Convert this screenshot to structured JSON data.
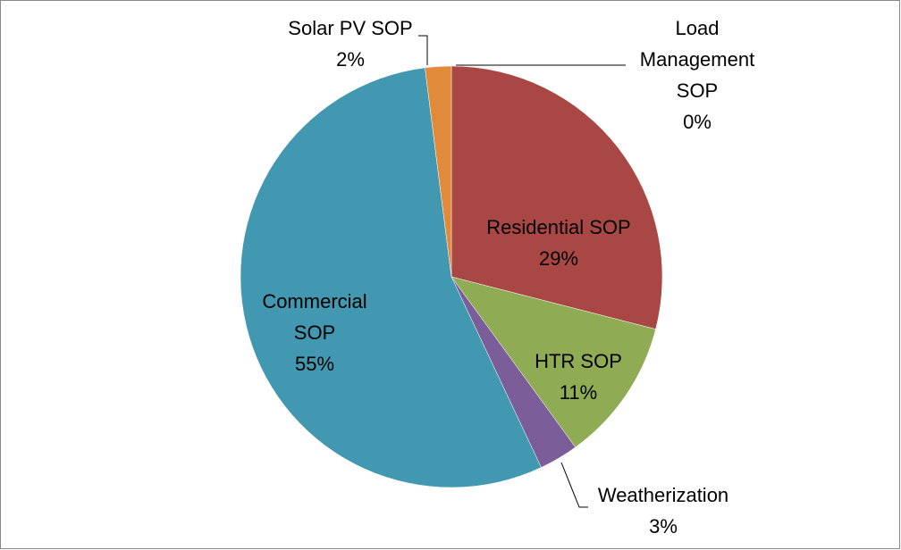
{
  "chart_data": {
    "type": "pie",
    "categories": [
      "Load Management SOP",
      "Residential SOP",
      "HTR SOP",
      "Weatherization",
      "Commercial SOP",
      "Solar PV SOP"
    ],
    "values": [
      0,
      29,
      11,
      3,
      55,
      2
    ],
    "value_labels": [
      "0%",
      "29%",
      "11%",
      "3%",
      "55%",
      "2%"
    ],
    "colors": [
      "#4f81bd",
      "#a94744",
      "#8fac54",
      "#7a5d99",
      "#4298b0",
      "#e08a3a"
    ]
  }
}
